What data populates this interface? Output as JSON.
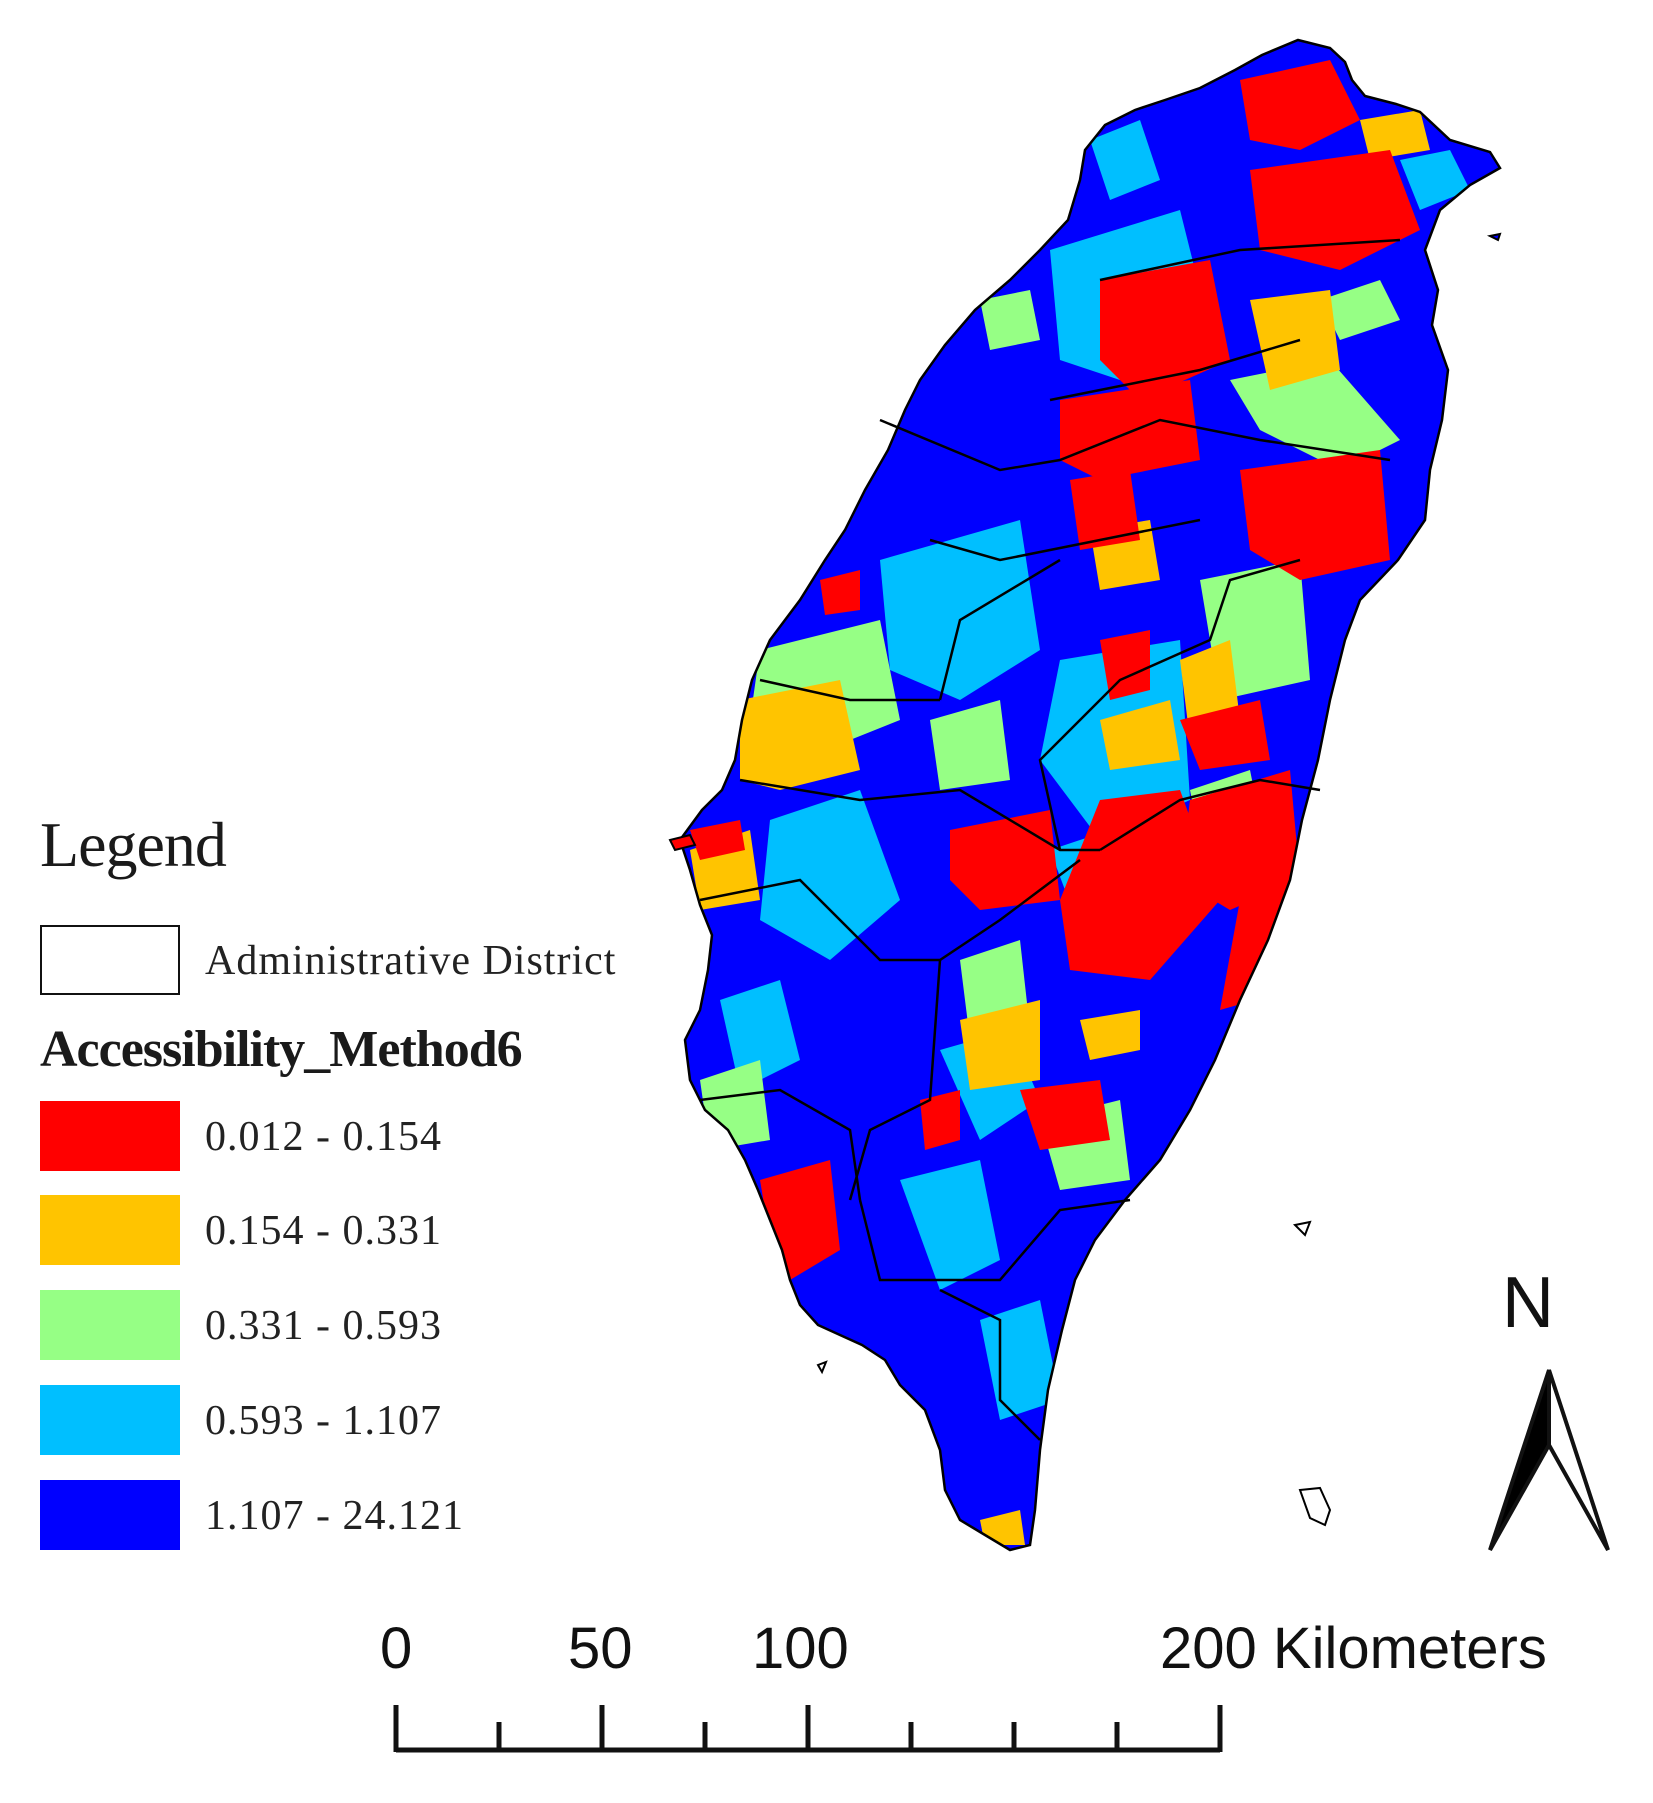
{
  "legend": {
    "title": "Legend",
    "district_label": "Administrative District",
    "field_name": "Accessibility_Method6",
    "classes": [
      {
        "label": "0.012 - 0.154",
        "color": "#ff0000"
      },
      {
        "label": "0.154 - 0.331",
        "color": "#ffc400"
      },
      {
        "label": "0.331 - 0.593",
        "color": "#96ff85"
      },
      {
        "label": "0.593 - 1.107",
        "color": "#00bfff"
      },
      {
        "label": "1.107 - 24.121",
        "color": "#0000ff"
      }
    ]
  },
  "scale_bar": {
    "labels": [
      "0",
      "50",
      "100",
      "200 Kilometers"
    ]
  },
  "north_arrow": {
    "letter": "N"
  }
}
